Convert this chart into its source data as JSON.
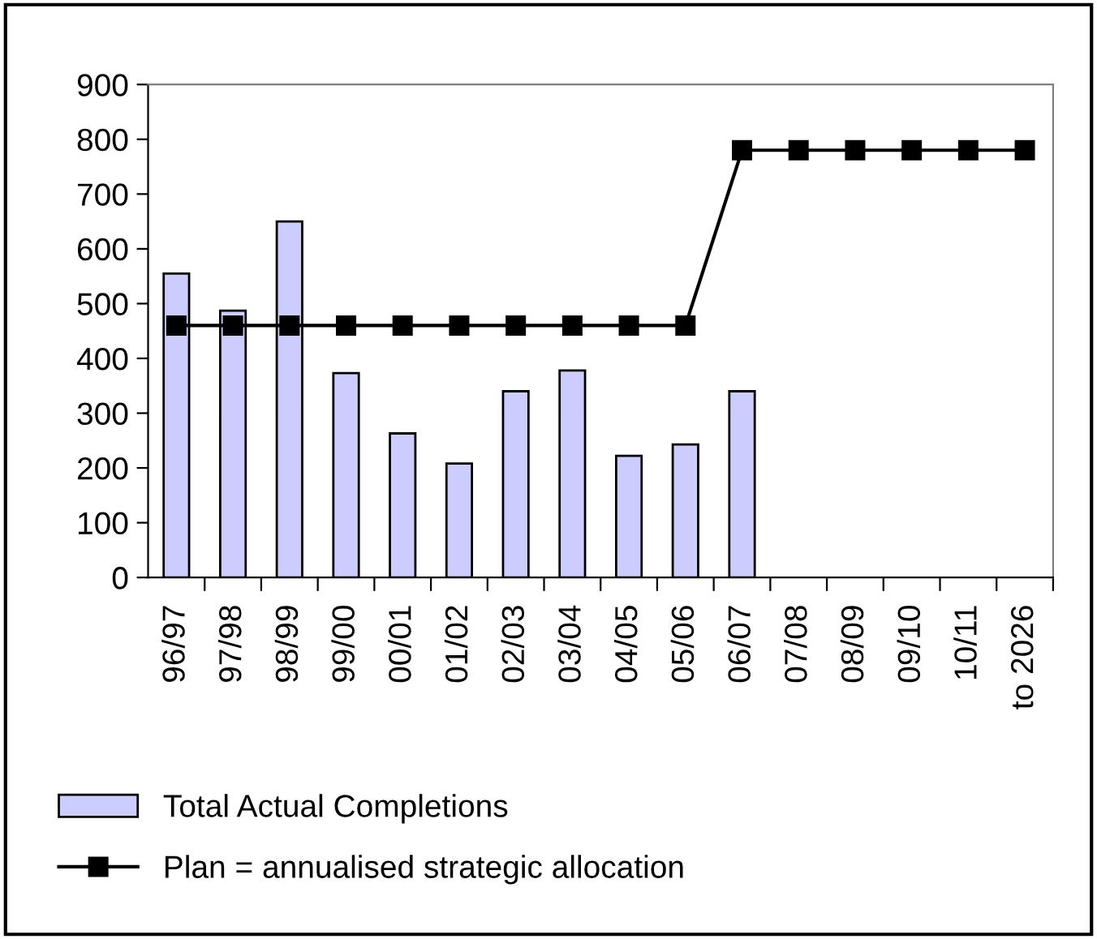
{
  "chart_data": {
    "type": "bar",
    "categories": [
      "96/97",
      "97/98",
      "98/99",
      "99/00",
      "00/01",
      "01/02",
      "02/03",
      "03/04",
      "04/05",
      "05/06",
      "06/07",
      "07/08",
      "08/09",
      "09/10",
      "10/11",
      "to 2026"
    ],
    "series": [
      {
        "name": "Total Actual Completions",
        "color": "#ccccff",
        "values": [
          555,
          487,
          650,
          373,
          263,
          208,
          340,
          378,
          222,
          243,
          340,
          null,
          null,
          null,
          null,
          null
        ]
      },
      {
        "name": "Plan = annualised strategic allocation",
        "type": "line",
        "color": "#000000",
        "marker": "square",
        "values": [
          460,
          460,
          460,
          460,
          460,
          460,
          460,
          460,
          460,
          460,
          780,
          780,
          780,
          780,
          780,
          780
        ]
      }
    ],
    "ylim": [
      0,
      900
    ],
    "yticks": [
      0,
      100,
      200,
      300,
      400,
      500,
      600,
      700,
      800,
      900
    ],
    "grid": false,
    "legend": "bottom"
  }
}
